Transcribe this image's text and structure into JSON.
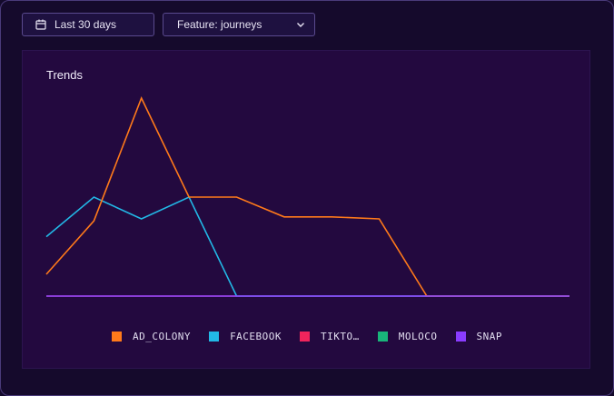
{
  "filters": {
    "date_range": "Last 30 days",
    "feature": "Feature: journeys"
  },
  "panel": {
    "title": "Trends"
  },
  "chart_data": {
    "type": "line",
    "title": "Trends",
    "x": [
      1,
      2,
      3,
      4,
      5,
      6,
      7,
      8,
      9,
      10,
      11,
      12
    ],
    "ylim": [
      0,
      100
    ],
    "grid": false,
    "legend_position": "bottom",
    "series": [
      {
        "name": "AD_COLONY",
        "color": "#ff7a1a",
        "values": [
          11,
          38,
          100,
          50,
          50,
          40,
          40,
          39,
          0,
          0,
          0,
          0
        ]
      },
      {
        "name": "FACEBOOK",
        "color": "#22b8e6",
        "values": [
          30,
          50,
          39,
          50,
          0,
          0,
          0,
          0,
          0,
          0,
          0,
          0
        ]
      },
      {
        "name": "TIKTO…",
        "color": "#f0245c",
        "values": [
          0,
          0,
          0,
          0,
          0,
          0,
          0,
          0,
          0,
          0,
          0,
          0
        ]
      },
      {
        "name": "MOLOCO",
        "color": "#19b57a",
        "values": [
          0,
          0,
          0,
          0,
          0,
          0,
          0,
          0,
          0,
          0,
          0,
          0
        ]
      },
      {
        "name": "SNAP",
        "color": "#8a3cff",
        "values": [
          0,
          0,
          0,
          0,
          0,
          0,
          0,
          0,
          0,
          0,
          0,
          0
        ]
      }
    ]
  }
}
